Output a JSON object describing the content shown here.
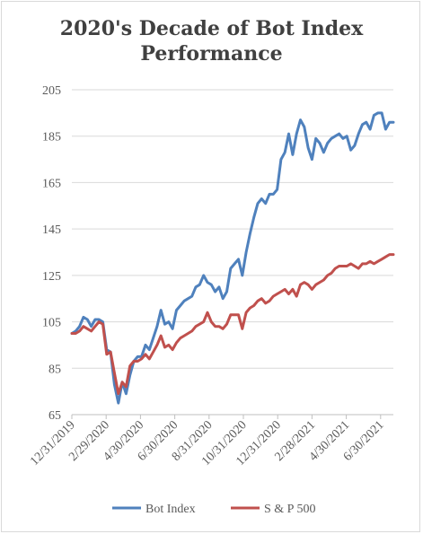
{
  "chart_data": {
    "type": "line",
    "title_line1": "2020's Decade of Bot Index",
    "title_line2": "Performance",
    "xlabel": "",
    "ylabel": "",
    "ylim": [
      65,
      205
    ],
    "yticks": [
      65,
      85,
      105,
      125,
      145,
      165,
      185,
      205
    ],
    "xticks": [
      "12/31/2019",
      "2/29/2020",
      "4/30/2020",
      "6/30/2020",
      "8/31/2020",
      "10/31/2020",
      "12/31/2020",
      "2/28/2021",
      "4/30/2021",
      "6/30/2021"
    ],
    "grid": true,
    "legend": "bottom",
    "series": [
      {
        "name": "Bot Index",
        "color": "#4f81bd",
        "values": [
          100,
          101,
          103,
          107,
          106,
          103,
          106,
          106,
          105,
          93,
          92,
          78,
          70,
          79,
          74,
          82,
          88,
          90,
          90,
          95,
          93,
          98,
          103,
          110,
          104,
          105,
          102,
          110,
          112,
          114,
          115,
          116,
          120,
          121,
          125,
          122,
          121,
          118,
          120,
          115,
          118,
          128,
          130,
          132,
          125,
          135,
          143,
          150,
          156,
          158,
          156,
          160,
          160,
          162,
          175,
          178,
          186,
          177,
          186,
          192,
          189,
          180,
          175,
          184,
          182,
          178,
          182,
          184,
          185,
          186,
          184,
          185,
          179,
          181,
          186,
          190,
          191,
          188,
          194,
          195,
          195,
          188,
          191,
          191
        ],
        "x_end": "8/31/2021"
      },
      {
        "name": "S & P 500",
        "color": "#c0504d",
        "values": [
          100,
          100,
          101,
          103,
          102,
          101,
          103,
          105,
          104,
          91,
          92,
          83,
          74,
          79,
          77,
          86,
          88,
          88,
          89,
          91,
          89,
          92,
          95,
          99,
          94,
          95,
          93,
          96,
          98,
          99,
          100,
          101,
          103,
          104,
          105,
          109,
          105,
          103,
          103,
          102,
          104,
          108,
          108,
          108,
          102,
          109,
          111,
          112,
          114,
          115,
          113,
          114,
          116,
          117,
          118,
          119,
          117,
          119,
          116,
          121,
          122,
          121,
          119,
          121,
          122,
          123,
          125,
          126,
          128,
          129,
          129,
          129,
          130,
          129,
          128,
          130,
          130,
          131,
          130,
          131,
          132,
          133,
          134,
          134
        ]
      }
    ]
  }
}
